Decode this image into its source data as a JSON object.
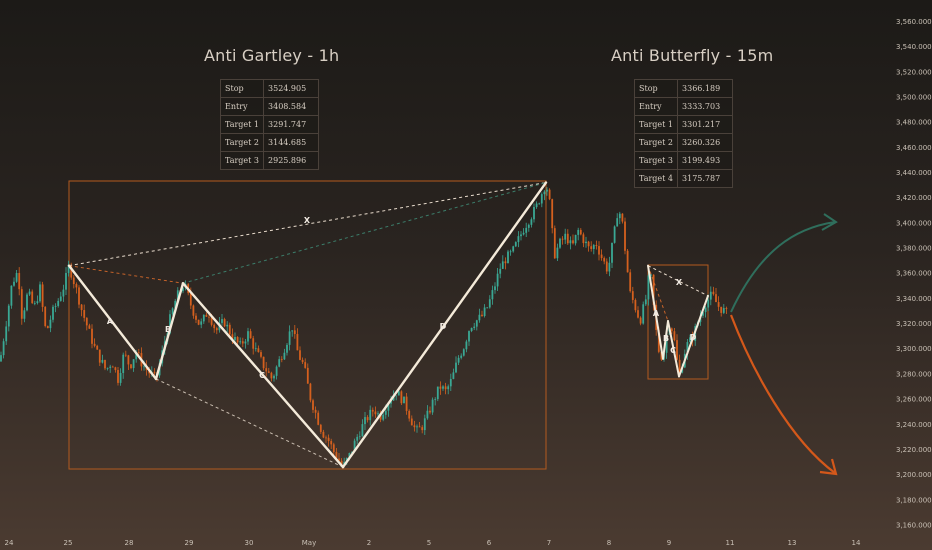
{
  "chart_data": {
    "type": "candlestick",
    "instrument_colors": {
      "up": "#3aa894",
      "down": "#d5601e",
      "pattern_line": "#f4ead9",
      "box": "#b35a1f",
      "arrow_up": "#2f6e5c",
      "arrow_down": "#d4581a"
    },
    "y_axis": {
      "side": "right",
      "ticks": [
        "3,160.000",
        "3,180.000",
        "3,200.000",
        "3,220.000",
        "3,240.000",
        "3,260.000",
        "3,280.000",
        "3,300.000",
        "3,320.000",
        "3,340.000",
        "3,360.000",
        "3,380.000",
        "3,400.000",
        "3,420.000",
        "3,440.000",
        "3,460.000",
        "3,480.000",
        "3,500.000",
        "3,520.000",
        "3,540.000",
        "3,560.000"
      ],
      "range": [
        3152,
        3566
      ]
    },
    "x_axis": {
      "ticks": [
        "24",
        "25",
        "28",
        "29",
        "30",
        "May",
        "2",
        "5",
        "6",
        "7",
        "8",
        "9",
        "11",
        "13",
        "14"
      ]
    },
    "price_path": [
      [
        0,
        3290
      ],
      [
        6,
        3320
      ],
      [
        12,
        3352
      ],
      [
        18,
        3362
      ],
      [
        22,
        3325
      ],
      [
        28,
        3345
      ],
      [
        34,
        3332
      ],
      [
        40,
        3348
      ],
      [
        46,
        3312
      ],
      [
        52,
        3328
      ],
      [
        58,
        3338
      ],
      [
        64,
        3350
      ],
      [
        69,
        3366
      ],
      [
        76,
        3348
      ],
      [
        82,
        3330
      ],
      [
        88,
        3316
      ],
      [
        94,
        3302
      ],
      [
        100,
        3292
      ],
      [
        106,
        3283
      ],
      [
        112,
        3290
      ],
      [
        118,
        3276
      ],
      [
        124,
        3296
      ],
      [
        130,
        3286
      ],
      [
        136,
        3298
      ],
      [
        142,
        3288
      ],
      [
        148,
        3282
      ],
      [
        156,
        3276
      ],
      [
        162,
        3296
      ],
      [
        168,
        3318
      ],
      [
        176,
        3340
      ],
      [
        184,
        3352
      ],
      [
        192,
        3332
      ],
      [
        200,
        3318
      ],
      [
        208,
        3330
      ],
      [
        216,
        3314
      ],
      [
        224,
        3322
      ],
      [
        232,
        3310
      ],
      [
        240,
        3302
      ],
      [
        248,
        3312
      ],
      [
        256,
        3298
      ],
      [
        264,
        3286
      ],
      [
        272,
        3276
      ],
      [
        280,
        3292
      ],
      [
        286,
        3304
      ],
      [
        292,
        3318
      ],
      [
        298,
        3296
      ],
      [
        304,
        3286
      ],
      [
        310,
        3262
      ],
      [
        316,
        3248
      ],
      [
        322,
        3234
      ],
      [
        328,
        3228
      ],
      [
        334,
        3218
      ],
      [
        343,
        3206
      ],
      [
        350,
        3216
      ],
      [
        356,
        3228
      ],
      [
        362,
        3238
      ],
      [
        368,
        3246
      ],
      [
        374,
        3252
      ],
      [
        380,
        3246
      ],
      [
        388,
        3258
      ],
      [
        396,
        3266
      ],
      [
        404,
        3258
      ],
      [
        410,
        3246
      ],
      [
        416,
        3234
      ],
      [
        422,
        3238
      ],
      [
        428,
        3248
      ],
      [
        434,
        3260
      ],
      [
        440,
        3270
      ],
      [
        446,
        3266
      ],
      [
        452,
        3276
      ],
      [
        458,
        3292
      ],
      [
        464,
        3302
      ],
      [
        470,
        3318
      ],
      [
        476,
        3322
      ],
      [
        482,
        3326
      ],
      [
        488,
        3334
      ],
      [
        494,
        3348
      ],
      [
        500,
        3364
      ],
      [
        506,
        3372
      ],
      [
        512,
        3376
      ],
      [
        518,
        3386
      ],
      [
        524,
        3396
      ],
      [
        530,
        3404
      ],
      [
        536,
        3412
      ],
      [
        542,
        3424
      ],
      [
        546,
        3432
      ],
      [
        550,
        3414
      ],
      [
        554,
        3374
      ],
      [
        560,
        3384
      ],
      [
        566,
        3390
      ],
      [
        572,
        3380
      ],
      [
        578,
        3394
      ],
      [
        584,
        3386
      ],
      [
        590,
        3378
      ],
      [
        596,
        3384
      ],
      [
        602,
        3372
      ],
      [
        608,
        3362
      ],
      [
        614,
        3390
      ],
      [
        618,
        3412
      ],
      [
        622,
        3402
      ],
      [
        626,
        3372
      ],
      [
        630,
        3344
      ],
      [
        634,
        3336
      ],
      [
        640,
        3322
      ],
      [
        646,
        3340
      ],
      [
        650,
        3364
      ],
      [
        654,
        3330
      ],
      [
        658,
        3300
      ],
      [
        663,
        3292
      ],
      [
        668,
        3322
      ],
      [
        673,
        3314
      ],
      [
        679,
        3278
      ],
      [
        686,
        3302
      ],
      [
        692,
        3308
      ],
      [
        698,
        3322
      ],
      [
        705,
        3336
      ],
      [
        712,
        3343
      ],
      [
        718,
        3334
      ],
      [
        724,
        3330
      ],
      [
        730,
        3326
      ]
    ],
    "patterns": [
      {
        "name": "Anti Gartley - 1h",
        "points": {
          "X": 3366,
          "A": 3276,
          "B": 3352,
          "C": 3206,
          "D": 3432
        },
        "legs": [
          "X",
          "A",
          "B",
          "C",
          "D"
        ],
        "table": [
          {
            "label": "Stop",
            "value": "3524.905"
          },
          {
            "label": "Entry",
            "value": "3408.584"
          },
          {
            "label": "Target 1",
            "value": "3291.747"
          },
          {
            "label": "Target 2",
            "value": "3144.685"
          },
          {
            "label": "Target 3",
            "value": "2925.896"
          }
        ]
      },
      {
        "name": "Anti Butterfly - 15m",
        "points": {
          "X": 3366,
          "A": 3292,
          "B": 3322,
          "C": 3278,
          "D": 3342
        },
        "legs": [
          "X",
          "A",
          "B",
          "C",
          "D"
        ],
        "table": [
          {
            "label": "Stop",
            "value": "3366.189"
          },
          {
            "label": "Entry",
            "value": "3333.703"
          },
          {
            "label": "Target 1",
            "value": "3301.217"
          },
          {
            "label": "Target 2",
            "value": "3260.326"
          },
          {
            "label": "Target 3",
            "value": "3199.493"
          },
          {
            "label": "Target 4",
            "value": "3175.787"
          }
        ]
      }
    ],
    "leg_labels": [
      "X",
      "A",
      "B",
      "C",
      "D"
    ]
  }
}
